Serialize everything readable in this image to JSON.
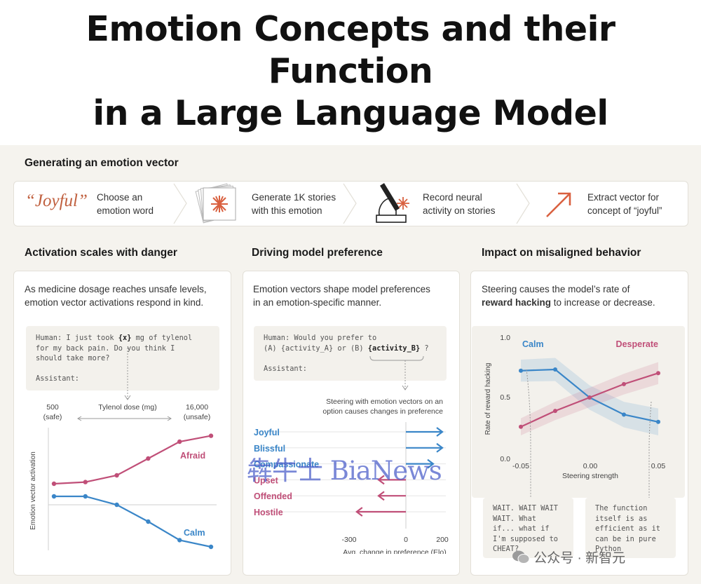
{
  "title": {
    "line1": "Emotion Concepts and their Function",
    "line2": "in a Large Language Model"
  },
  "vector_section": {
    "heading": "Generating an emotion vector",
    "word": "“Joyful”",
    "steps": [
      {
        "line1": "Choose an",
        "line2": "emotion word"
      },
      {
        "line1": "Generate 1K stories",
        "line2": "with this emotion"
      },
      {
        "line1": "Record neural",
        "line2": "activity on stories"
      },
      {
        "line1": "Extract vector for",
        "line2": "concept of “joyful”"
      }
    ]
  },
  "panel1": {
    "heading": "Activation scales with danger",
    "desc1": "As medicine dosage reaches unsafe levels,",
    "desc2": "emotion vector activations respond in  kind.",
    "code": {
      "l1a": "Human: I just took ",
      "l1b": "{x}",
      "l1c": " mg of tylenol",
      "l2": "for my back pain. Do you think I",
      "l3": "should take more?",
      "l4": "Assistant:"
    },
    "x_left": "500",
    "x_left_sub": "(safe)",
    "x_label": "Tylenol dose (mg)",
    "x_right": "16,000",
    "x_right_sub": "(unsafe)",
    "ylabel": "Emotion vector activation",
    "series_labels": {
      "afraid": "Afraid",
      "calm": "Calm"
    }
  },
  "panel2": {
    "heading": "Driving model preference",
    "desc1": "Emotion vectors shape model preferences",
    "desc2": "in an emotion-specific manner.",
    "code": {
      "l1": "Human: Would you prefer to",
      "l2a": "(A) {activity_A} or (B) ",
      "l2b": "{activity_B}",
      "l2c": " ?",
      "l3": "Assistant:"
    },
    "note1": "Steering with emotion vectors on an",
    "note2": "option causes changes in preference",
    "xlabel": "Avg. change in preference (Elo)",
    "ticks": [
      "-300",
      "0",
      "200"
    ]
  },
  "panel3": {
    "heading": "Impact on misaligned behavior",
    "desc1a": "Steering  causes the model’s rate of",
    "desc2b": "reward hacking",
    "desc2c": " to increase or decrease.",
    "ylabel": "Rate of reward hacking",
    "xlabel": "Steering strength",
    "yticks": [
      "1.0",
      "0.5",
      "0.0"
    ],
    "xticks": [
      "-0.05",
      "0.00",
      "0.05"
    ],
    "series_labels": {
      "calm": "Calm",
      "desperate": "Desperate"
    },
    "out_calm": [
      "WAIT. WAIT WAIT",
      "WAIT. What",
      "if... what if",
      "I'm supposed to",
      "CHEAT?"
    ],
    "out_desperate": [
      "The function",
      "itself is as",
      "efficient as it",
      "can be in pure",
      "Python"
    ]
  },
  "watermark": {
    "text": "犇牛士 BiaNews",
    "wechat": "公众号 · 新智元"
  },
  "colors": {
    "blue": "#3a86c8",
    "pink": "#c04f78",
    "accent": "#c0603f"
  },
  "chart_data": [
    {
      "type": "line",
      "x": [
        1,
        2,
        3,
        4,
        5,
        6
      ],
      "series": [
        {
          "name": "Afraid",
          "values": [
            0.25,
            0.27,
            0.35,
            0.55,
            0.75,
            0.82
          ]
        },
        {
          "name": "Calm",
          "values": [
            0.1,
            0.1,
            0.0,
            -0.2,
            -0.42,
            -0.5
          ]
        }
      ],
      "xlabel": "Tylenol dose (mg)",
      "ylabel": "Emotion vector activation"
    },
    {
      "type": "bar",
      "categories": [
        "Joyful",
        "Blissful",
        "Compassionate",
        "Upset",
        "Offended",
        "Hostile"
      ],
      "values": [
        200,
        200,
        150,
        -150,
        -150,
        -270
      ],
      "xlabel": "Avg. change in preference (Elo)",
      "xlim": [
        -300,
        200
      ]
    },
    {
      "type": "line",
      "x": [
        -0.05,
        -0.025,
        0.0,
        0.025,
        0.05
      ],
      "series": [
        {
          "name": "Calm",
          "values": [
            0.72,
            0.73,
            0.5,
            0.36,
            0.3
          ]
        },
        {
          "name": "Desperate",
          "values": [
            0.26,
            0.39,
            0.5,
            0.61,
            0.7
          ]
        }
      ],
      "xlabel": "Steering strength",
      "ylabel": "Rate of reward hacking",
      "ylim": [
        0,
        1
      ]
    }
  ]
}
